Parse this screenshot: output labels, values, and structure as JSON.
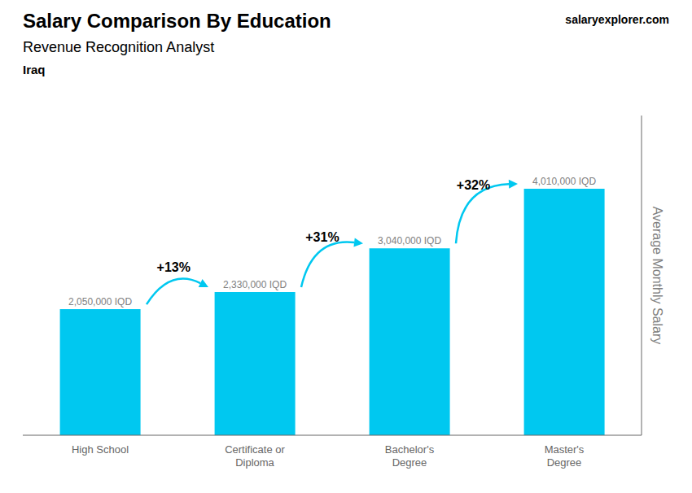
{
  "chart_data": {
    "type": "bar",
    "title": "Salary Comparison By Education",
    "subtitle": "Revenue Recognition Analyst",
    "ylabel": "Average Monthly Salary",
    "categories": [
      "High School",
      "Certificate or\nDiploma",
      "Bachelor's\nDegree",
      "Master's\nDegree"
    ],
    "values": [
      2050000,
      2330000,
      3040000,
      4010000
    ],
    "value_labels": [
      "2,050,000 IQD",
      "2,330,000 IQD",
      "3,040,000 IQD",
      "4,010,000 IQD"
    ],
    "data_labels": true,
    "color": "#00c8f0",
    "ylim": [
      0,
      5200000
    ],
    "tick_labels": "x",
    "grid": false,
    "annotations": {
      "country": "Iraq",
      "brand": "salaryexplorer.com",
      "changes": [
        "+13%",
        "+31%",
        "+32%"
      ]
    }
  }
}
